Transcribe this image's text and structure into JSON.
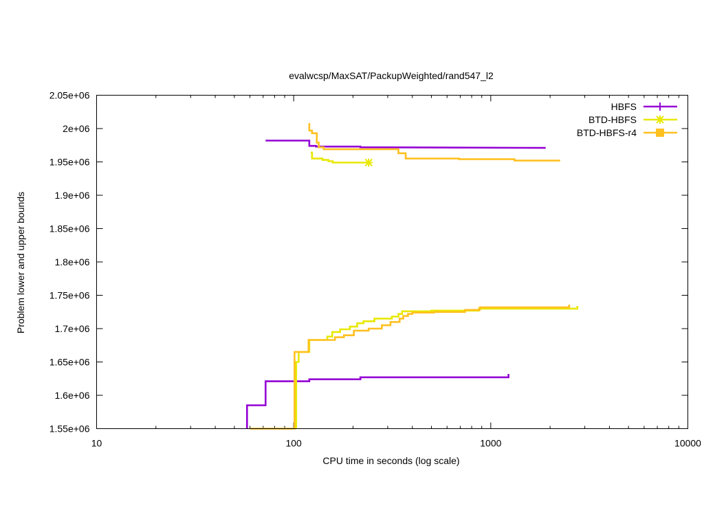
{
  "chart_data": {
    "type": "line",
    "title": "evalwcsp/MaxSAT/PackupWeighted/rand547_l2",
    "xlabel": "CPU time in seconds (log scale)",
    "ylabel": "Problem lower and upper bounds",
    "x_scale": "log",
    "xlim": [
      10,
      10000
    ],
    "ylim": [
      1550000,
      2050000
    ],
    "x_ticks": [
      {
        "value": 10,
        "label": "10"
      },
      {
        "value": 100,
        "label": "100"
      },
      {
        "value": 1000,
        "label": "1000"
      },
      {
        "value": 10000,
        "label": "10000"
      }
    ],
    "y_ticks": [
      {
        "value": 1550000,
        "label": "1.55e+06"
      },
      {
        "value": 1600000,
        "label": "1.6e+06"
      },
      {
        "value": 1650000,
        "label": "1.65e+06"
      },
      {
        "value": 1700000,
        "label": "1.7e+06"
      },
      {
        "value": 1750000,
        "label": "1.75e+06"
      },
      {
        "value": 1800000,
        "label": "1.8e+06"
      },
      {
        "value": 1850000,
        "label": "1.85e+06"
      },
      {
        "value": 1900000,
        "label": "1.9e+06"
      },
      {
        "value": 1950000,
        "label": "1.95e+06"
      },
      {
        "value": 2000000,
        "label": "2e+06"
      },
      {
        "value": 2050000,
        "label": "2.05e+06"
      }
    ],
    "grid": false,
    "legend_position": "top-right",
    "series": [
      {
        "name": "HBFS",
        "color": "#9400d3",
        "marker": "plus",
        "upper": [
          [
            72,
            1982000
          ],
          [
            120,
            1982000
          ],
          [
            120,
            1974000
          ],
          [
            130,
            1974000
          ],
          [
            130,
            1973000
          ],
          [
            218,
            1973000
          ],
          [
            218,
            1972000
          ],
          [
            1900,
            1971000
          ]
        ],
        "lower": [
          [
            58,
            1550000
          ],
          [
            58,
            1585000
          ],
          [
            72,
            1585000
          ],
          [
            72,
            1621000
          ],
          [
            120,
            1621000
          ],
          [
            120,
            1624000
          ],
          [
            218,
            1624000
          ],
          [
            218,
            1627000
          ],
          [
            1230,
            1627000
          ],
          [
            1230,
            1632000
          ]
        ],
        "end_marker": null
      },
      {
        "name": "BTD-HBFS",
        "color": "#e8e800",
        "marker": "star",
        "upper": [
          [
            122,
            1964000
          ],
          [
            124,
            1964000
          ],
          [
            124,
            1955000
          ],
          [
            140,
            1955000
          ],
          [
            140,
            1953000
          ],
          [
            150,
            1953000
          ],
          [
            150,
            1951000
          ],
          [
            158,
            1951000
          ],
          [
            158,
            1949000
          ],
          [
            240,
            1949000
          ]
        ],
        "lower": [
          [
            103,
            1550000
          ],
          [
            103,
            1650000
          ],
          [
            106,
            1650000
          ],
          [
            106,
            1665000
          ],
          [
            120,
            1665000
          ],
          [
            120,
            1683000
          ],
          [
            148,
            1683000
          ],
          [
            148,
            1688000
          ],
          [
            157,
            1688000
          ],
          [
            157,
            1695000
          ],
          [
            172,
            1695000
          ],
          [
            172,
            1699000
          ],
          [
            193,
            1699000
          ],
          [
            193,
            1703000
          ],
          [
            210,
            1703000
          ],
          [
            210,
            1708000
          ],
          [
            226,
            1708000
          ],
          [
            226,
            1711000
          ],
          [
            257,
            1711000
          ],
          [
            257,
            1715000
          ],
          [
            315,
            1715000
          ],
          [
            315,
            1718000
          ],
          [
            340,
            1718000
          ],
          [
            340,
            1722000
          ],
          [
            355,
            1722000
          ],
          [
            355,
            1726000
          ],
          [
            500,
            1726000
          ],
          [
            500,
            1727000
          ],
          [
            870,
            1727000
          ],
          [
            870,
            1730000
          ],
          [
            2750,
            1730000
          ],
          [
            2750,
            1734000
          ]
        ],
        "end_marker": [
          240,
          1949000
        ]
      },
      {
        "name": "BTD-HBFS-r4",
        "color": "#ffc020",
        "marker": "square",
        "upper": [
          [
            119,
            2007000
          ],
          [
            120,
            2007000
          ],
          [
            120,
            1997000
          ],
          [
            124,
            1997000
          ],
          [
            124,
            1993000
          ],
          [
            131,
            1993000
          ],
          [
            131,
            1979000
          ],
          [
            134,
            1979000
          ],
          [
            134,
            1972000
          ],
          [
            142,
            1972000
          ],
          [
            142,
            1969000
          ],
          [
            340,
            1969000
          ],
          [
            340,
            1963000
          ],
          [
            370,
            1963000
          ],
          [
            370,
            1955000
          ],
          [
            690,
            1955000
          ],
          [
            690,
            1954000
          ],
          [
            1320,
            1954000
          ],
          [
            1320,
            1952000
          ],
          [
            2250,
            1952000
          ]
        ],
        "lower": [
          [
            60,
            1550000
          ],
          [
            101,
            1550000
          ],
          [
            101,
            1665000
          ],
          [
            119,
            1665000
          ],
          [
            119,
            1683000
          ],
          [
            162,
            1683000
          ],
          [
            162,
            1687000
          ],
          [
            180,
            1687000
          ],
          [
            180,
            1690000
          ],
          [
            202,
            1690000
          ],
          [
            202,
            1697000
          ],
          [
            240,
            1697000
          ],
          [
            240,
            1700000
          ],
          [
            280,
            1700000
          ],
          [
            280,
            1705000
          ],
          [
            310,
            1705000
          ],
          [
            310,
            1710000
          ],
          [
            345,
            1710000
          ],
          [
            345,
            1715000
          ],
          [
            360,
            1715000
          ],
          [
            360,
            1719000
          ],
          [
            380,
            1719000
          ],
          [
            380,
            1722000
          ],
          [
            400,
            1722000
          ],
          [
            400,
            1724000
          ],
          [
            515,
            1724000
          ],
          [
            515,
            1725000
          ],
          [
            740,
            1725000
          ],
          [
            740,
            1728000
          ],
          [
            880,
            1728000
          ],
          [
            880,
            1732000
          ],
          [
            2500,
            1732000
          ],
          [
            2500,
            1736000
          ]
        ],
        "end_marker": null
      }
    ]
  }
}
